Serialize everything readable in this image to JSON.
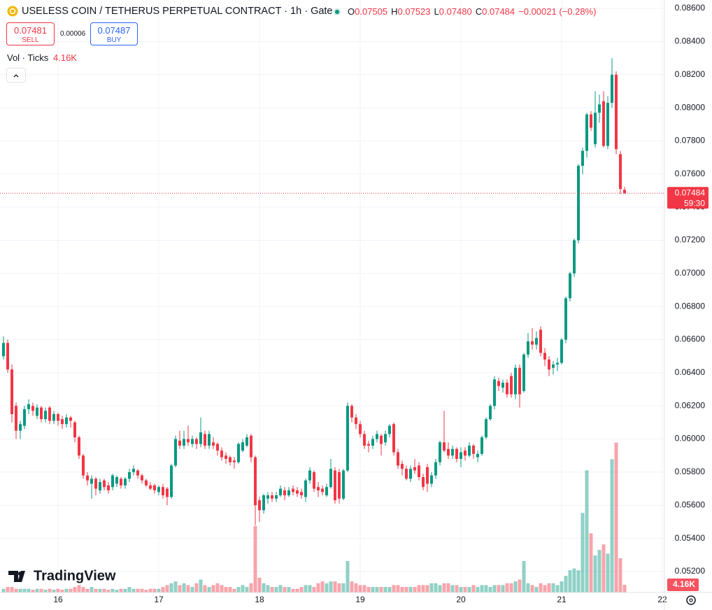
{
  "header": {
    "symbol": "USELESS COIN / TETHERUS PERPETUAL CONTRACT · 1h · Gate",
    "ohlc": [
      [
        "O",
        "0.07505"
      ],
      [
        "H",
        "0.07523"
      ],
      [
        "L",
        "0.07480"
      ],
      [
        "C",
        "0.07484"
      ]
    ],
    "change": "−0.00021 (−0.28%)",
    "sell_price": "0.07481",
    "sell_label": "SELL",
    "spread": "0.00006",
    "buy_price": "0.07487",
    "buy_label": "BUY",
    "volume_label": "Vol · Ticks",
    "volume_value": "4.16K"
  },
  "branding": "TradingView",
  "chart_data": {
    "type": "candlestick",
    "up_color": "#089981",
    "down_color": "#f23645",
    "ylim": [
      0.05073,
      0.08651
    ],
    "yticks": [
      {
        "value": 0.052,
        "label": "0.05200"
      },
      {
        "value": 0.054,
        "label": "0.05400"
      },
      {
        "value": 0.056,
        "label": "0.05600"
      },
      {
        "value": 0.058,
        "label": "0.05800"
      },
      {
        "value": 0.06,
        "label": "0.06000"
      },
      {
        "value": 0.062,
        "label": "0.06200"
      },
      {
        "value": 0.064,
        "label": "0.06400"
      },
      {
        "value": 0.066,
        "label": "0.06600"
      },
      {
        "value": 0.068,
        "label": "0.06800"
      },
      {
        "value": 0.07,
        "label": "0.07000"
      },
      {
        "value": 0.072,
        "label": "0.07200"
      },
      {
        "value": 0.074,
        "label": "0.07400"
      },
      {
        "value": 0.076,
        "label": "0.07600"
      },
      {
        "value": 0.078,
        "label": "0.07800"
      },
      {
        "value": 0.08,
        "label": "0.08000"
      },
      {
        "value": 0.082,
        "label": "0.08200"
      },
      {
        "value": 0.084,
        "label": "0.08400"
      },
      {
        "value": 0.086,
        "label": "0.08600"
      }
    ],
    "xlim": [
      -0.833,
      157.5
    ],
    "xticks": [
      {
        "value": 13,
        "label": "16"
      },
      {
        "value": 37,
        "label": "17"
      },
      {
        "value": 61,
        "label": "18"
      },
      {
        "value": 85,
        "label": "19"
      },
      {
        "value": 109,
        "label": "20"
      },
      {
        "value": 133,
        "label": "21"
      },
      {
        "value": 157,
        "label": "22"
      }
    ],
    "grid": true,
    "last_price": {
      "value": 0.07484,
      "label": "0.07484"
    },
    "countdown": "59:30",
    "last_volume": {
      "value": 4.16,
      "label": "4.16K"
    },
    "volume_ylim": [
      0,
      320
    ],
    "ohlc": [
      [
        0.065,
        0.0662,
        0.0648,
        0.0658
      ],
      [
        0.0658,
        0.066,
        0.064,
        0.0642
      ],
      [
        0.0642,
        0.0645,
        0.061,
        0.0615
      ],
      [
        0.062,
        0.0622,
        0.06,
        0.0605
      ],
      [
        0.0605,
        0.0611,
        0.06,
        0.0609
      ],
      [
        0.0608,
        0.062,
        0.0606,
        0.0618
      ],
      [
        0.0618,
        0.0624,
        0.0615,
        0.0621
      ],
      [
        0.062,
        0.0622,
        0.0614,
        0.0617
      ],
      [
        0.0614,
        0.0621,
        0.0612,
        0.0619
      ],
      [
        0.0619,
        0.062,
        0.061,
        0.0612
      ],
      [
        0.0612,
        0.0619,
        0.061,
        0.0617
      ],
      [
        0.0619,
        0.062,
        0.0609,
        0.0611
      ],
      [
        0.0611,
        0.0617,
        0.0609,
        0.0615
      ],
      [
        0.0615,
        0.0616,
        0.0608,
        0.0611
      ],
      [
        0.0612,
        0.0614,
        0.0606,
        0.0609
      ],
      [
        0.0609,
        0.0615,
        0.0607,
        0.0613
      ],
      [
        0.0613,
        0.0614,
        0.0607,
        0.0611
      ],
      [
        0.061,
        0.0611,
        0.0598,
        0.0601
      ],
      [
        0.0601,
        0.0602,
        0.0588,
        0.059
      ],
      [
        0.059,
        0.0591,
        0.0576,
        0.0578
      ],
      [
        0.0578,
        0.058,
        0.0572,
        0.0575
      ],
      [
        0.0573,
        0.0578,
        0.0564,
        0.0576
      ],
      [
        0.0576,
        0.0577,
        0.0566,
        0.057
      ],
      [
        0.0569,
        0.0576,
        0.0567,
        0.0574
      ],
      [
        0.0575,
        0.0576,
        0.0569,
        0.0571
      ],
      [
        0.0572,
        0.0574,
        0.0567,
        0.0569
      ],
      [
        0.0571,
        0.0579,
        0.0569,
        0.0578
      ],
      [
        0.0573,
        0.0578,
        0.0571,
        0.0577
      ],
      [
        0.0576,
        0.0577,
        0.057,
        0.0572
      ],
      [
        0.0572,
        0.0577,
        0.057,
        0.0576
      ],
      [
        0.0576,
        0.0582,
        0.0574,
        0.058
      ],
      [
        0.058,
        0.0584,
        0.0578,
        0.0582
      ],
      [
        0.0581,
        0.0582,
        0.0576,
        0.0578
      ],
      [
        0.0578,
        0.0579,
        0.0573,
        0.0575
      ],
      [
        0.0575,
        0.0576,
        0.0571,
        0.0572
      ],
      [
        0.0572,
        0.0574,
        0.0569,
        0.057
      ],
      [
        0.0572,
        0.0573,
        0.0567,
        0.0569
      ],
      [
        0.0568,
        0.0572,
        0.0566,
        0.0571
      ],
      [
        0.0571,
        0.0573,
        0.0564,
        0.0566
      ],
      [
        0.057,
        0.0571,
        0.056,
        0.0565
      ],
      [
        0.0565,
        0.0585,
        0.0564,
        0.0584
      ],
      [
        0.0584,
        0.0602,
        0.0583,
        0.06
      ],
      [
        0.0599,
        0.0605,
        0.0594,
        0.0596
      ],
      [
        0.0596,
        0.0605,
        0.0594,
        0.06
      ],
      [
        0.06,
        0.0608,
        0.0596,
        0.0598
      ],
      [
        0.0597,
        0.0602,
        0.0595,
        0.06
      ],
      [
        0.06,
        0.0601,
        0.0594,
        0.0597
      ],
      [
        0.0597,
        0.0613,
        0.0595,
        0.0604
      ],
      [
        0.0603,
        0.0605,
        0.0594,
        0.0596
      ],
      [
        0.0596,
        0.0605,
        0.0594,
        0.0603
      ],
      [
        0.0598,
        0.0601,
        0.0594,
        0.0596
      ],
      [
        0.0597,
        0.0598,
        0.059,
        0.0593
      ],
      [
        0.0593,
        0.0595,
        0.0587,
        0.0589
      ],
      [
        0.059,
        0.0592,
        0.0585,
        0.0588
      ],
      [
        0.0589,
        0.059,
        0.0584,
        0.0586
      ],
      [
        0.0587,
        0.0589,
        0.0582,
        0.0586
      ],
      [
        0.0586,
        0.0598,
        0.0585,
        0.0597
      ],
      [
        0.0593,
        0.06,
        0.0592,
        0.0598
      ],
      [
        0.0596,
        0.0603,
        0.0595,
        0.0601
      ],
      [
        0.0602,
        0.0603,
        0.0586,
        0.0589
      ],
      [
        0.0589,
        0.059,
        0.0548,
        0.056
      ],
      [
        0.0563,
        0.0565,
        0.055,
        0.0557
      ],
      [
        0.0557,
        0.0567,
        0.0555,
        0.0566
      ],
      [
        0.0564,
        0.0568,
        0.0561,
        0.0566
      ],
      [
        0.0566,
        0.0568,
        0.0562,
        0.0564
      ],
      [
        0.0564,
        0.0568,
        0.0562,
        0.0566
      ],
      [
        0.0566,
        0.0572,
        0.0565,
        0.057
      ],
      [
        0.0569,
        0.0571,
        0.0563,
        0.0566
      ],
      [
        0.0566,
        0.0571,
        0.0565,
        0.0569
      ],
      [
        0.057,
        0.0572,
        0.0566,
        0.0568
      ],
      [
        0.0569,
        0.0571,
        0.0565,
        0.0567
      ],
      [
        0.0568,
        0.057,
        0.0564,
        0.0566
      ],
      [
        0.0565,
        0.0576,
        0.0562,
        0.0575
      ],
      [
        0.0575,
        0.0583,
        0.0573,
        0.0581
      ],
      [
        0.058,
        0.0581,
        0.0568,
        0.057
      ],
      [
        0.0571,
        0.0574,
        0.0565,
        0.0569
      ],
      [
        0.057,
        0.0572,
        0.0566,
        0.0568
      ],
      [
        0.0566,
        0.0573,
        0.0565,
        0.0571
      ],
      [
        0.0571,
        0.0588,
        0.057,
        0.0582
      ],
      [
        0.0581,
        0.0583,
        0.0561,
        0.0563
      ],
      [
        0.058,
        0.0582,
        0.0561,
        0.0564
      ],
      [
        0.0564,
        0.0582,
        0.0563,
        0.0581
      ],
      [
        0.0581,
        0.0622,
        0.058,
        0.062
      ],
      [
        0.062,
        0.0621,
        0.061,
        0.0613
      ],
      [
        0.0613,
        0.0615,
        0.0606,
        0.0609
      ],
      [
        0.0609,
        0.0611,
        0.0601,
        0.0603
      ],
      [
        0.0603,
        0.0605,
        0.0594,
        0.0596
      ],
      [
        0.0597,
        0.0599,
        0.0592,
        0.0596
      ],
      [
        0.0596,
        0.0602,
        0.0594,
        0.06
      ],
      [
        0.06,
        0.0605,
        0.0598,
        0.0603
      ],
      [
        0.0602,
        0.0603,
        0.059,
        0.0597
      ],
      [
        0.0598,
        0.0605,
        0.0596,
        0.0603
      ],
      [
        0.0603,
        0.0609,
        0.0601,
        0.0608
      ],
      [
        0.0609,
        0.061,
        0.059,
        0.0592
      ],
      [
        0.0592,
        0.0594,
        0.0582,
        0.0584
      ],
      [
        0.0585,
        0.0587,
        0.0578,
        0.0582
      ],
      [
        0.0582,
        0.0584,
        0.0575,
        0.0576
      ],
      [
        0.0576,
        0.0584,
        0.0574,
        0.0582
      ],
      [
        0.0583,
        0.0588,
        0.0579,
        0.0581
      ],
      [
        0.0584,
        0.0586,
        0.0575,
        0.0577
      ],
      [
        0.0577,
        0.0579,
        0.0569,
        0.0571
      ],
      [
        0.0583,
        0.0585,
        0.0568,
        0.0573
      ],
      [
        0.0573,
        0.058,
        0.0571,
        0.0578
      ],
      [
        0.0578,
        0.0588,
        0.0576,
        0.0586
      ],
      [
        0.0586,
        0.0599,
        0.0584,
        0.0598
      ],
      [
        0.0598,
        0.0617,
        0.0592,
        0.0593
      ],
      [
        0.0594,
        0.0598,
        0.0588,
        0.059
      ],
      [
        0.059,
        0.0596,
        0.0588,
        0.0594
      ],
      [
        0.0594,
        0.0595,
        0.0586,
        0.0588
      ],
      [
        0.0588,
        0.0595,
        0.0583,
        0.0592
      ],
      [
        0.0593,
        0.0595,
        0.0587,
        0.059
      ],
      [
        0.059,
        0.0598,
        0.0589,
        0.0596
      ],
      [
        0.0596,
        0.0597,
        0.0588,
        0.0591
      ],
      [
        0.0589,
        0.0593,
        0.0586,
        0.0591
      ],
      [
        0.0591,
        0.0602,
        0.059,
        0.0601
      ],
      [
        0.0601,
        0.0613,
        0.06,
        0.0612
      ],
      [
        0.0612,
        0.0621,
        0.0611,
        0.062
      ],
      [
        0.062,
        0.0638,
        0.0618,
        0.0636
      ],
      [
        0.0635,
        0.0637,
        0.0629,
        0.0632
      ],
      [
        0.0631,
        0.0636,
        0.0628,
        0.0634
      ],
      [
        0.0634,
        0.0636,
        0.0625,
        0.0627
      ],
      [
        0.0638,
        0.064,
        0.0625,
        0.0627
      ],
      [
        0.0627,
        0.0645,
        0.0624,
        0.0643
      ],
      [
        0.0643,
        0.0645,
        0.0619,
        0.0627
      ],
      [
        0.0629,
        0.0652,
        0.0628,
        0.0651
      ],
      [
        0.0651,
        0.0664,
        0.0649,
        0.0659
      ],
      [
        0.0659,
        0.0667,
        0.0654,
        0.0657
      ],
      [
        0.0657,
        0.0665,
        0.0654,
        0.0661
      ],
      [
        0.0666,
        0.0668,
        0.065,
        0.0652
      ],
      [
        0.0652,
        0.0655,
        0.0644,
        0.0648
      ],
      [
        0.0648,
        0.065,
        0.0638,
        0.0642
      ],
      [
        0.0643,
        0.0647,
        0.0639,
        0.0645
      ],
      [
        0.0645,
        0.0649,
        0.0641,
        0.0646
      ],
      [
        0.0646,
        0.0661,
        0.0645,
        0.066
      ],
      [
        0.066,
        0.0686,
        0.0658,
        0.0685
      ],
      [
        0.0685,
        0.0701,
        0.0683,
        0.07
      ],
      [
        0.07,
        0.0721,
        0.0698,
        0.072
      ],
      [
        0.072,
        0.0766,
        0.0718,
        0.0765
      ],
      [
        0.0765,
        0.0776,
        0.076,
        0.0774
      ],
      [
        0.0774,
        0.0797,
        0.077,
        0.0796
      ],
      [
        0.0796,
        0.0798,
        0.0786,
        0.0788
      ],
      [
        0.0778,
        0.081,
        0.0776,
        0.0797
      ],
      [
        0.0797,
        0.0808,
        0.0791,
        0.0802
      ],
      [
        0.0804,
        0.081,
        0.0776,
        0.0777
      ],
      [
        0.0777,
        0.0807,
        0.0775,
        0.0803
      ],
      [
        0.0803,
        0.083,
        0.08,
        0.082
      ],
      [
        0.082,
        0.0822,
        0.0772,
        0.0775
      ],
      [
        0.0772,
        0.0774,
        0.0748,
        0.0751
      ],
      [
        0.07505,
        0.07523,
        0.0748,
        0.07484
      ]
    ],
    "volume": [
      2,
      3,
      3,
      2,
      2,
      2,
      2,
      1.5,
      2,
      2,
      1.5,
      2,
      1.5,
      2,
      1.5,
      2,
      2,
      3,
      4,
      3,
      2,
      3,
      2,
      2,
      2,
      1.5,
      2,
      1.5,
      2,
      2,
      3,
      2,
      2,
      2,
      1.5,
      2,
      2,
      2,
      3,
      4,
      5,
      6,
      4,
      5,
      4,
      3,
      5,
      7,
      4,
      3,
      4,
      5,
      4,
      3,
      3,
      2,
      3,
      4,
      3,
      5,
      36,
      8,
      5,
      4,
      3,
      3,
      4,
      3,
      3,
      2,
      2,
      3,
      4,
      4,
      3,
      5,
      6,
      5,
      6,
      6,
      5,
      5,
      17,
      6,
      5,
      4,
      4,
      3,
      3,
      3,
      3,
      3,
      3,
      4,
      4,
      3,
      3,
      3,
      3,
      4,
      4,
      4,
      5,
      5,
      4,
      5,
      5,
      4,
      4,
      3,
      3,
      3,
      4,
      3,
      4,
      4,
      3,
      4,
      4,
      4,
      5,
      5,
      6,
      7,
      17,
      5,
      4,
      3,
      5,
      4,
      5,
      5,
      4,
      6,
      9,
      12,
      13,
      12,
      43,
      66,
      32,
      20,
      23,
      26,
      21,
      72,
      81,
      18.5,
      4.16
    ]
  }
}
